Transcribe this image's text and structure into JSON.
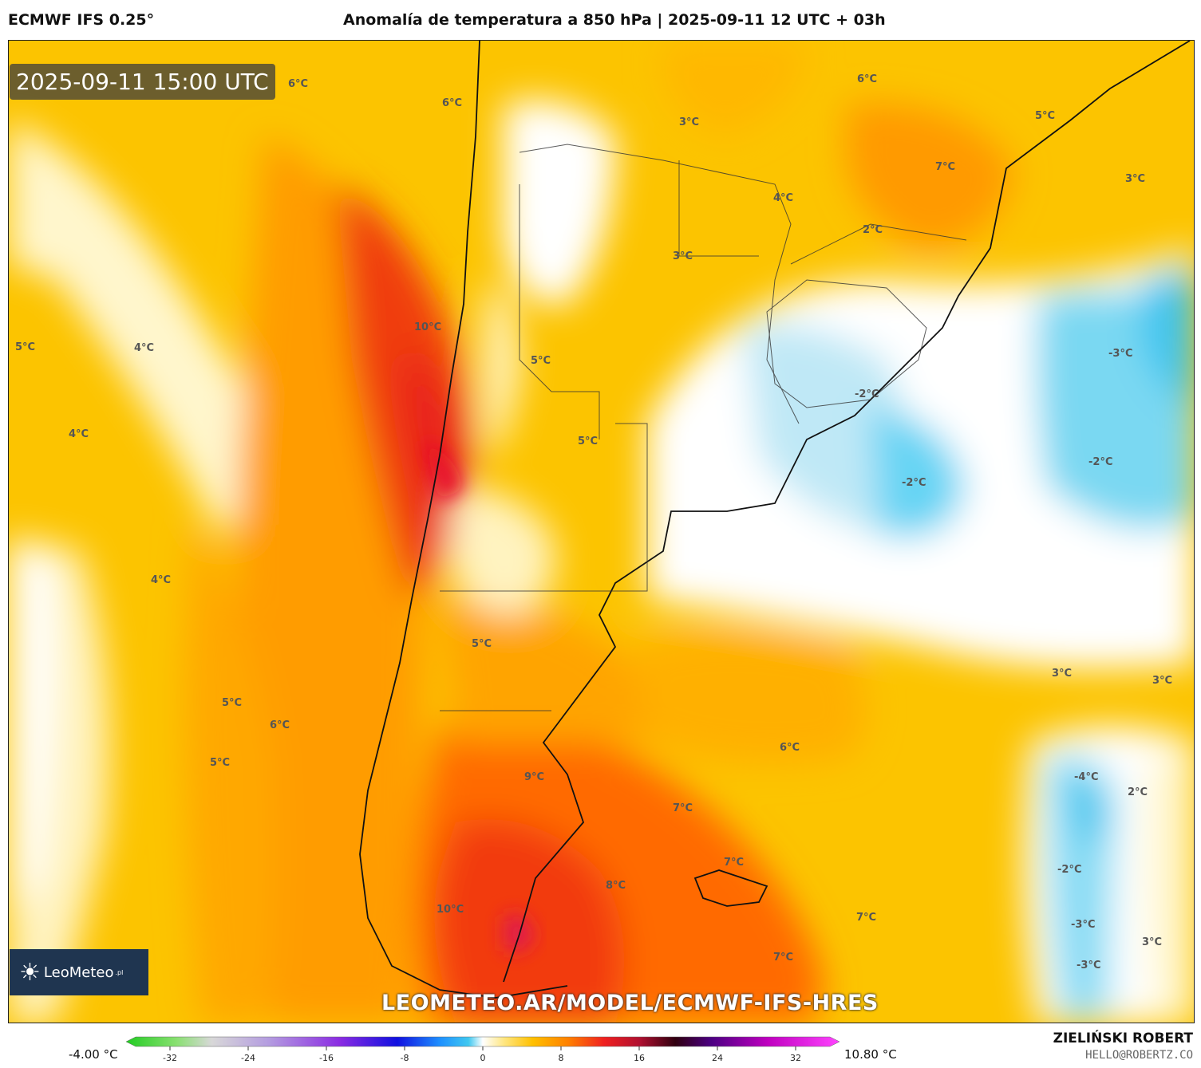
{
  "header": {
    "model": "ECMWF IFS 0.25°",
    "title": "Anomalía de temperatura a 850 hPa | 2025-09-11 12 UTC + 03h"
  },
  "timestamp": "2025-09-11 15:00 UTC",
  "logo": {
    "name": "LeoMeteo",
    "suffix": ".pl"
  },
  "url_watermark": "LEOMETEO.AR/MODEL/ECMWF-IFS-HRES",
  "colorbar": {
    "min_label": "-4.00 °C",
    "max_label": "10.80 °C",
    "ticks": [
      "-32",
      "-24",
      "-16",
      "-8",
      "0",
      "8",
      "16",
      "24",
      "32"
    ],
    "range": [
      -36,
      36
    ]
  },
  "credit": {
    "author": "ZIELIŃSKI ROBERT",
    "email": "HELLO@ROBERTZ.CO"
  },
  "map_labels": [
    "6°C",
    "6°C",
    "3°C",
    "6°C",
    "5°C",
    "7°C",
    "3°C",
    "4°C",
    "2°C",
    "3°C",
    "5°C",
    "4°C",
    "10°C",
    "5°C",
    "-3°C",
    "4°C",
    "5°C",
    "-2°C",
    "-2°C",
    "-2°C",
    "4°C",
    "5°C",
    "3°C",
    "3°C",
    "5°C",
    "6°C",
    "6°C",
    "5°C",
    "9°C",
    "-4°C",
    "2°C",
    "7°C",
    "7°C",
    "-2°C",
    "8°C",
    "10°C",
    "7°C",
    "-3°C",
    "3°C",
    "7°C",
    "-3°C"
  ]
}
